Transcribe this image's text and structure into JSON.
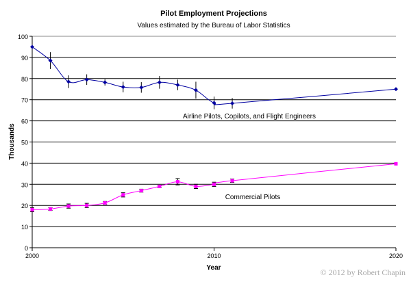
{
  "chart_data": {
    "type": "line",
    "title": "Pilot Employment Projections",
    "subtitle": "Values estimated by the Bureau of Labor Statistics",
    "xlabel": "Year",
    "ylabel": "Thousands",
    "xlim": [
      2000,
      2020
    ],
    "ylim": [
      0,
      100
    ],
    "x_ticks": [
      "2000",
      "2010",
      "2020"
    ],
    "y_ticks": [
      "0",
      "10",
      "20",
      "30",
      "40",
      "50",
      "60",
      "70",
      "80",
      "90",
      "100"
    ],
    "grid": "horizontal",
    "series": [
      {
        "name": "Airline Pilots, Copilots, and Flight Engineers",
        "color": "#0000a0",
        "x": [
          2000,
          2001,
          2002,
          2003,
          2004,
          2005,
          2006,
          2007,
          2008,
          2009,
          2010,
          2011,
          2020
        ],
        "y": [
          95,
          88.5,
          78.5,
          79.5,
          78.2,
          76,
          75.8,
          78.2,
          77,
          74.5,
          68.5,
          68.3,
          75
        ],
        "error": [
          0,
          4,
          3,
          2.5,
          1.5,
          2.5,
          2.5,
          3,
          2.5,
          4,
          3,
          2.5,
          0
        ]
      },
      {
        "name": "Commercial Pilots",
        "color": "#ff00ff",
        "x": [
          2000,
          2001,
          2002,
          2003,
          2004,
          2005,
          2006,
          2007,
          2008,
          2009,
          2010,
          2011,
          2020
        ],
        "y": [
          18,
          18.3,
          19.7,
          20,
          21.2,
          25,
          27,
          29,
          31.2,
          29,
          30,
          31.7,
          39.7
        ],
        "error": [
          1,
          0.7,
          1,
          1,
          0.7,
          1,
          0.7,
          0.5,
          1.5,
          1,
          1,
          0.8,
          0
        ]
      }
    ]
  },
  "credit": "© 2012 by Robert Chapin"
}
